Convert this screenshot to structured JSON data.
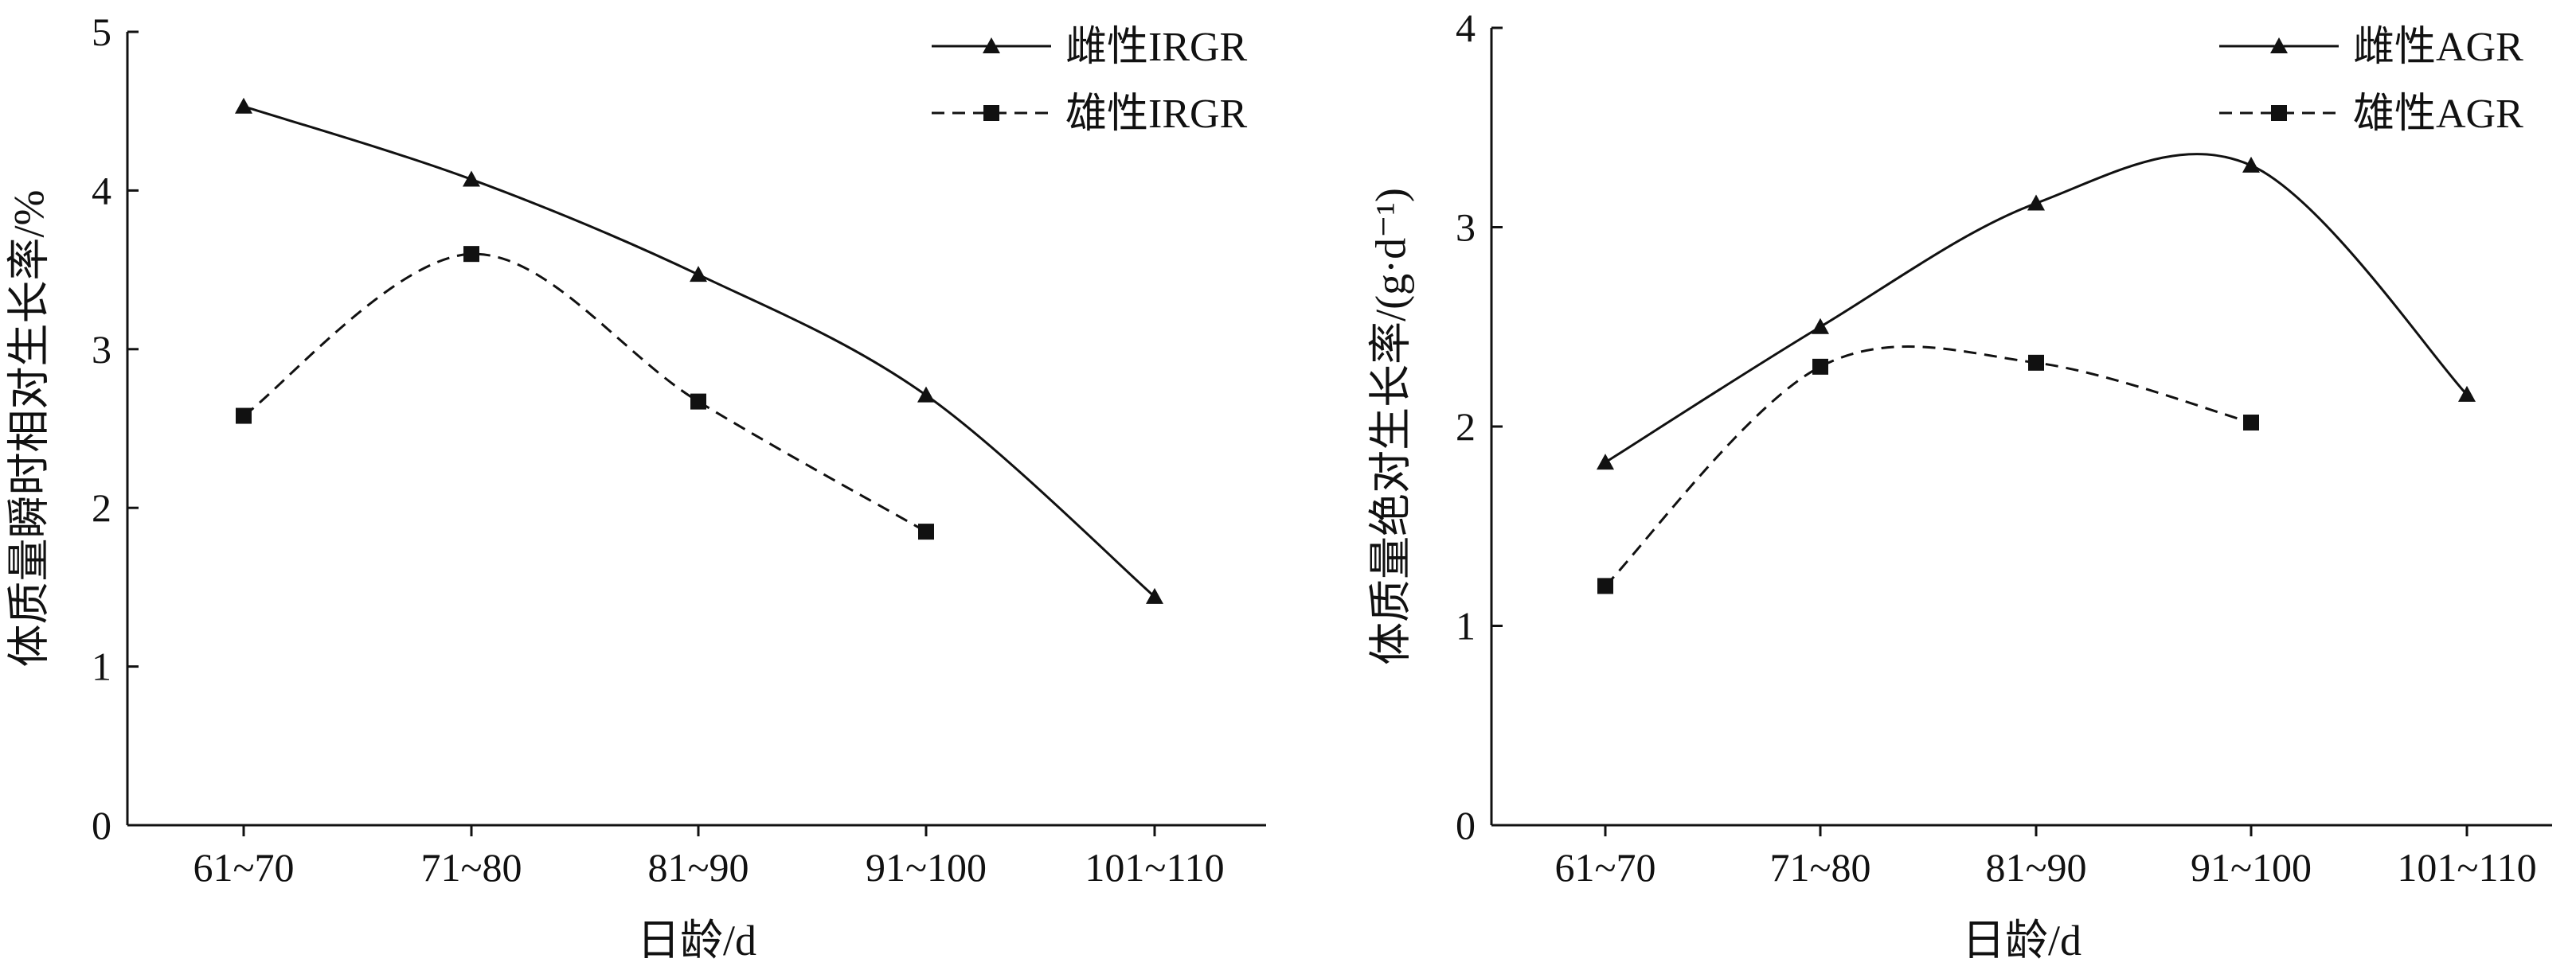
{
  "chart_data": [
    {
      "type": "line",
      "title": "",
      "categories": [
        "61~70",
        "71~80",
        "81~90",
        "91~100",
        "101~110"
      ],
      "xlabel": "日龄/d",
      "ylabel": "体质量瞬时相对生长率/%",
      "ylim": [
        0,
        5
      ],
      "yticks": [
        "0",
        "1",
        "2",
        "3",
        "4",
        "5"
      ],
      "grid": false,
      "legend_position": "top-right",
      "series": [
        {
          "name": "雌性IRGR",
          "values": [
            4.53,
            4.07,
            3.47,
            2.71,
            1.44
          ],
          "marker": "triangle",
          "dash": "solid"
        },
        {
          "name": "雄性IRGR",
          "values": [
            2.58,
            3.6,
            2.67,
            1.85,
            null
          ],
          "marker": "square",
          "dash": "dashed"
        }
      ]
    },
    {
      "type": "line",
      "title": "",
      "categories": [
        "61~70",
        "71~80",
        "81~90",
        "91~100",
        "101~110"
      ],
      "xlabel": "日龄/d",
      "ylabel": "体质量绝对生长率/(g·d⁻¹)",
      "ylim": [
        0,
        4
      ],
      "yticks": [
        "0",
        "1",
        "2",
        "3",
        "4"
      ],
      "grid": false,
      "legend_position": "top-right",
      "series": [
        {
          "name": "雌性AGR",
          "values": [
            1.82,
            2.5,
            3.12,
            3.31,
            2.16
          ],
          "marker": "triangle",
          "dash": "solid"
        },
        {
          "name": "雄性AGR",
          "values": [
            1.2,
            2.3,
            2.32,
            2.02,
            null
          ],
          "marker": "square",
          "dash": "dashed"
        }
      ]
    }
  ]
}
